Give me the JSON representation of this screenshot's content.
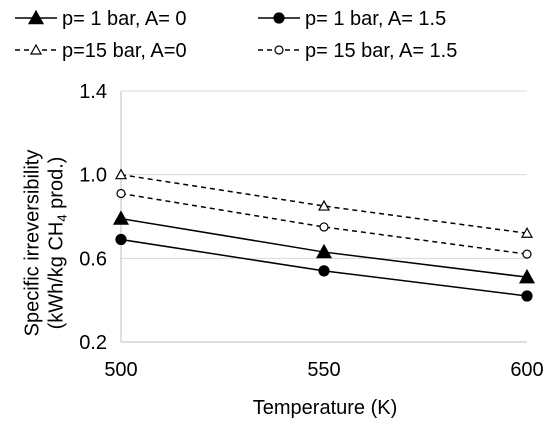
{
  "chart_data": {
    "type": "line",
    "x": [
      500,
      550,
      600
    ],
    "series": [
      {
        "name": "p= 1 bar, A= 0",
        "values": [
          0.79,
          0.63,
          0.51
        ],
        "marker": "triangle",
        "fill": "filled",
        "dash": "solid"
      },
      {
        "name": "p= 1 bar, A= 1.5",
        "values": [
          0.69,
          0.54,
          0.42
        ],
        "marker": "circle",
        "fill": "filled",
        "dash": "solid"
      },
      {
        "name": "p=15 bar, A=0",
        "values": [
          1.0,
          0.85,
          0.72
        ],
        "marker": "triangle",
        "fill": "open",
        "dash": "dashed"
      },
      {
        "name": "p= 15 bar, A= 1.5",
        "values": [
          0.91,
          0.75,
          0.62
        ],
        "marker": "circle",
        "fill": "open",
        "dash": "dashed"
      }
    ],
    "xlabel": "Temperature (K)",
    "ylabel_line1": "Specific irreversibility",
    "ylabel_line2_pre": "(kWh/kg CH",
    "ylabel_line2_sub": "4",
    "ylabel_line2_post": " prod.)",
    "xticks": [
      "500",
      "550",
      "600"
    ],
    "yticks": [
      "0.2",
      "0.6",
      "1.0",
      "1.4"
    ],
    "xlim": [
      500,
      600
    ],
    "ylim": [
      0.2,
      1.4
    ],
    "grid": "horizontal",
    "legend_position": "top",
    "colors": {
      "line": "#000000",
      "grid": "#d9d9d9",
      "axis": "#bfbfbf"
    }
  }
}
